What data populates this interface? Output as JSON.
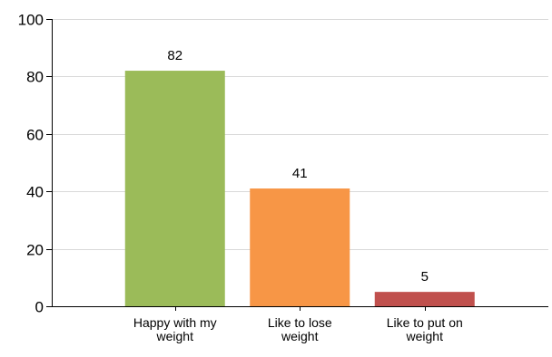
{
  "chart_data": {
    "type": "bar",
    "categories": [
      [
        "Happy with my",
        "weight"
      ],
      [
        "Like to lose",
        "weight"
      ],
      [
        "Like to put on",
        "weight"
      ]
    ],
    "values": [
      82,
      41,
      5
    ],
    "data_labels": [
      "82",
      "41",
      "5"
    ],
    "colors": [
      "#9bbb59",
      "#f79646",
      "#c0504d"
    ],
    "title": "",
    "xlabel": "",
    "ylabel": "",
    "ylim": [
      0,
      100
    ],
    "yticks": [
      0,
      20,
      40,
      60,
      80,
      100
    ],
    "ytick_labels": [
      "0",
      "20",
      "40",
      "60",
      "80",
      "100"
    ],
    "grid": true,
    "legend": "none"
  }
}
